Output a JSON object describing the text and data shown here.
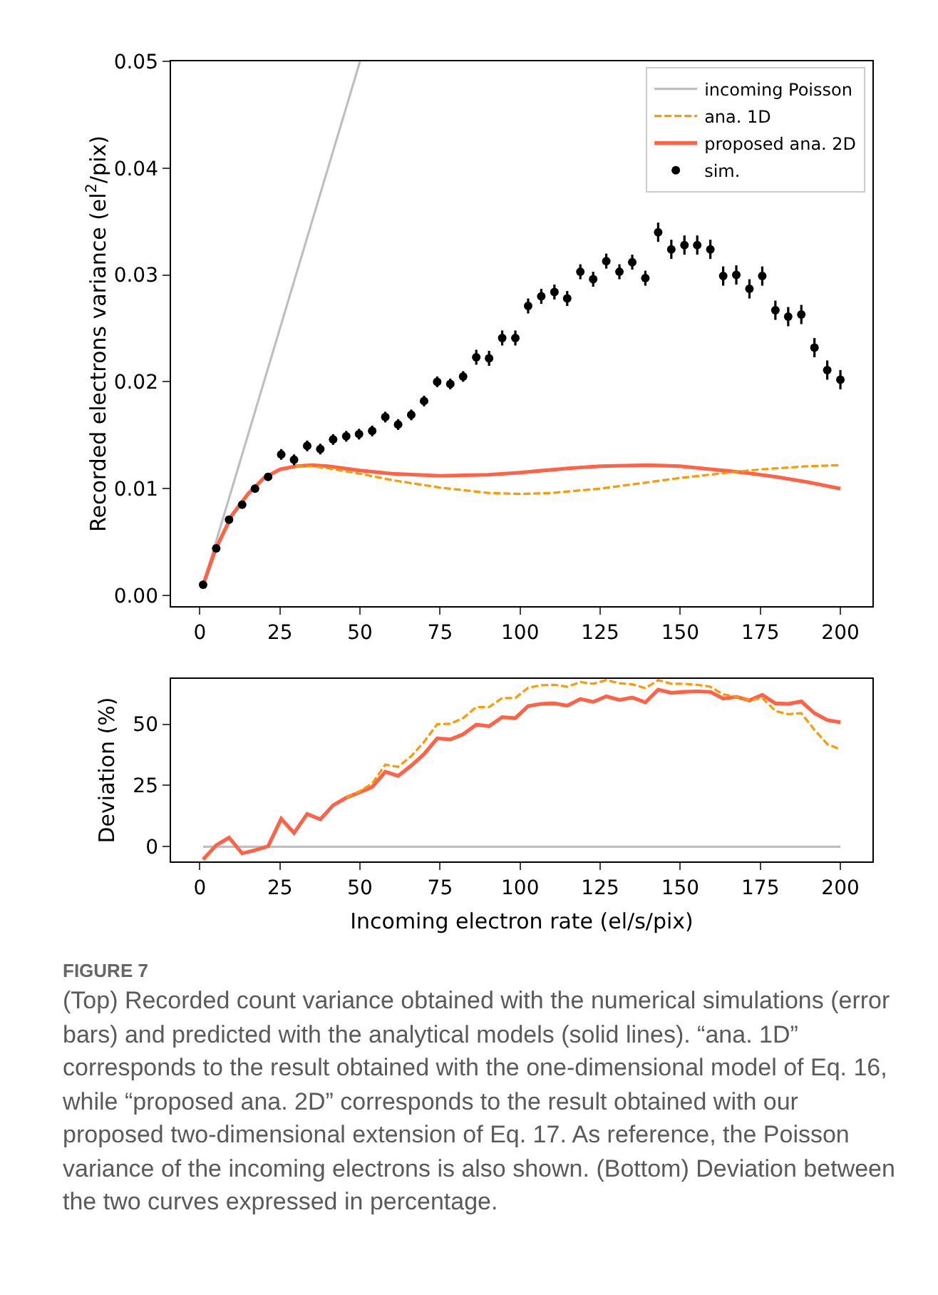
{
  "chart_data": [
    {
      "type": "line",
      "ylabel": "Recorded electrons variance (el$^{2}$/pix)",
      "xlim": [
        -9,
        210
      ],
      "xticks": [
        0,
        25,
        50,
        75,
        100,
        125,
        150,
        175,
        200
      ],
      "ylim": [
        -0.001,
        0.05
      ],
      "yticks": [
        {
          "value": 0,
          "label": "0.00"
        },
        {
          "value": 0.01,
          "label": "0.01"
        },
        {
          "value": 0.02,
          "label": "0.02"
        },
        {
          "value": 0.03,
          "label": "0.03"
        },
        {
          "value": 0.04,
          "label": "0.04"
        },
        {
          "value": 0.05,
          "label": "0.05"
        }
      ],
      "grid": false,
      "legend": "top right",
      "series": [
        {
          "name": "incoming Poisson",
          "type": "line",
          "color": "#bfbfbf",
          "line_style": "solid",
          "x": [
            1,
            50
          ],
          "values": [
            0.001,
            0.05
          ]
        },
        {
          "name": "ana. 1D",
          "type": "line",
          "color": "#ff9900",
          "line_style": "dashed",
          "x": [
            30,
            35,
            40,
            50,
            60,
            75,
            90,
            100,
            110,
            125,
            140,
            150,
            165,
            175,
            190,
            200
          ],
          "values": [
            0.0121,
            0.0121,
            0.0119,
            0.0114,
            0.0108,
            0.0101,
            0.0096,
            0.0095,
            0.0096,
            0.01,
            0.0106,
            0.011,
            0.0115,
            0.0118,
            0.0121,
            0.0122
          ]
        },
        {
          "name": "proposed ana. 2D",
          "type": "line",
          "color": "#ff6347",
          "line_style": "solid",
          "x": [
            1,
            5,
            10,
            15,
            20,
            25,
            30,
            35,
            40,
            50,
            60,
            75,
            90,
            100,
            115,
            125,
            140,
            150,
            160,
            170,
            180,
            190,
            200
          ],
          "values": [
            0.001,
            0.0044,
            0.0075,
            0.0095,
            0.011,
            0.0118,
            0.0121,
            0.0122,
            0.0121,
            0.0117,
            0.0114,
            0.0112,
            0.0113,
            0.0115,
            0.0119,
            0.0121,
            0.0122,
            0.0121,
            0.0118,
            0.0115,
            0.0111,
            0.0106,
            0.01
          ]
        },
        {
          "name": "sim.",
          "type": "scatter",
          "color": "#000000",
          "marker": "circle",
          "x": [
            1,
            5.1,
            9.1,
            13.2,
            17.2,
            21.3,
            25.4,
            29.4,
            33.5,
            37.6,
            41.6,
            45.7,
            49.7,
            53.8,
            57.9,
            61.9,
            66.0,
            70.0,
            74.1,
            78.2,
            82.2,
            86.3,
            90.3,
            94.4,
            98.5,
            102.5,
            106.6,
            110.7,
            114.7,
            118.8,
            122.8,
            126.9,
            131.0,
            135.0,
            139.1,
            143.1,
            147.2,
            151.3,
            155.3,
            159.4,
            163.4,
            167.5,
            171.6,
            175.6,
            179.7,
            183.7,
            187.8,
            191.9,
            195.9,
            200
          ],
          "values": [
            0.001,
            0.0044,
            0.0071,
            0.0085,
            0.01,
            0.0111,
            0.0132,
            0.0127,
            0.014,
            0.0137,
            0.0146,
            0.0149,
            0.0151,
            0.0154,
            0.0167,
            0.016,
            0.0169,
            0.0182,
            0.02,
            0.0198,
            0.0205,
            0.0223,
            0.0222,
            0.0241,
            0.0241,
            0.0271,
            0.028,
            0.0284,
            0.0278,
            0.0303,
            0.0296,
            0.0313,
            0.0303,
            0.0312,
            0.0297,
            0.034,
            0.0324,
            0.0328,
            0.0328,
            0.0324,
            0.0299,
            0.03,
            0.0287,
            0.0299,
            0.0267,
            0.0261,
            0.0263,
            0.0232,
            0.0211,
            0.0202
          ],
          "errors": [
            0.0002,
            0.0002,
            0.0002,
            0.0002,
            0.0002,
            0.0002,
            0.0005,
            0.0005,
            0.0005,
            0.0005,
            0.0005,
            0.0005,
            0.0005,
            0.0005,
            0.0005,
            0.0005,
            0.0005,
            0.0005,
            0.0005,
            0.0005,
            0.0005,
            0.0007,
            0.0007,
            0.0007,
            0.0007,
            0.0007,
            0.0007,
            0.0007,
            0.0007,
            0.0007,
            0.0007,
            0.0007,
            0.0007,
            0.0007,
            0.0007,
            0.0009,
            0.0009,
            0.0009,
            0.0009,
            0.0009,
            0.0009,
            0.0009,
            0.0009,
            0.0009,
            0.0009,
            0.0009,
            0.0009,
            0.0009,
            0.0009,
            0.0009
          ]
        }
      ]
    },
    {
      "type": "line",
      "xlabel": "Incoming electron rate (el/s/pix)",
      "ylabel": "Deviation (%)",
      "xlim": [
        -9,
        210
      ],
      "xticks": [
        0,
        25,
        50,
        75,
        100,
        125,
        150,
        175,
        200
      ],
      "ylim": [
        -6,
        68.5
      ],
      "yticks": [
        0,
        25,
        50
      ],
      "grid": false,
      "legend": false,
      "series": [
        {
          "type": "line",
          "color": "#bfbfbf",
          "line_style": "solid",
          "x": [
            1,
            200
          ],
          "values": [
            0,
            0
          ]
        },
        {
          "type": "line",
          "color": "#ff9900",
          "line_style": "dashed",
          "x": [
            45.7,
            49.7,
            53.8,
            57.9,
            61.9,
            66.0,
            70.0,
            74.1,
            78.2,
            82.2,
            86.3,
            90.3,
            94.4,
            98.5,
            102.5,
            106.6,
            110.7,
            114.7,
            118.8,
            122.8,
            126.9,
            131.0,
            135.0,
            139.1,
            143.1,
            147.2,
            151.3,
            155.3,
            159.4,
            163.4,
            167.5,
            171.6,
            175.6,
            179.7,
            183.7,
            187.8,
            191.9,
            195.9,
            200
          ],
          "values": [
            20.0,
            22.5,
            25.8,
            33.5,
            32.6,
            37.0,
            42.8,
            50.0,
            50.2,
            52.5,
            57.0,
            57.0,
            60.7,
            60.7,
            64.9,
            65.9,
            66.1,
            65.3,
            67.2,
            66.5,
            68.0,
            66.7,
            66.3,
            64.7,
            68.0,
            66.5,
            66.5,
            66.1,
            65.3,
            62.2,
            61.2,
            59.7,
            60.7,
            55.4,
            54.1,
            54.5,
            47.7,
            41.9,
            39.7
          ]
        },
        {
          "type": "line",
          "color": "#ff6347",
          "line_style": "solid",
          "x": [
            1,
            5.1,
            9.1,
            13.2,
            17.2,
            21.3,
            25.4,
            29.4,
            33.5,
            37.6,
            41.6,
            45.7,
            49.7,
            53.8,
            57.9,
            61.9,
            66.0,
            70.0,
            74.1,
            78.2,
            82.2,
            86.3,
            90.3,
            94.4,
            98.5,
            102.5,
            106.6,
            110.7,
            114.7,
            118.8,
            122.8,
            126.9,
            131.0,
            135.0,
            139.1,
            143.1,
            147.2,
            151.3,
            155.3,
            159.4,
            163.4,
            167.5,
            171.6,
            175.6,
            179.7,
            183.7,
            187.8,
            191.9,
            195.9,
            200
          ],
          "values": [
            -5.2,
            0.6,
            3.7,
            -2.7,
            -1.4,
            0.2,
            11.4,
            5.6,
            13.4,
            11.2,
            16.9,
            20.0,
            22.1,
            24.4,
            30.6,
            28.9,
            33.1,
            37.8,
            44.2,
            43.8,
            45.9,
            49.8,
            49.2,
            52.9,
            52.5,
            57.4,
            58.3,
            58.5,
            57.6,
            60.3,
            59.1,
            61.4,
            59.9,
            60.9,
            58.9,
            64.1,
            62.8,
            63.2,
            63.4,
            63.2,
            60.5,
            61.2,
            59.7,
            62.0,
            58.5,
            58.3,
            59.3,
            54.5,
            51.7,
            50.8
          ]
        }
      ],
      "annotations": [
        "FIGURE 7",
        "(Top) Recorded count variance obtained with the numerical simulations (error bars) and predicted with the analytical models (solid lines). “ana. 1D” corresponds to the result obtained with the one-dimensional model of Eq. 16, while “proposed ana. 2D” corresponds to the result obtained with our proposed two-dimensional extension of Eq. 17. As reference, the Poisson variance of the incoming electrons is also shown. (Bottom) Deviation between the two curves expressed in percentage."
      ]
    }
  ]
}
